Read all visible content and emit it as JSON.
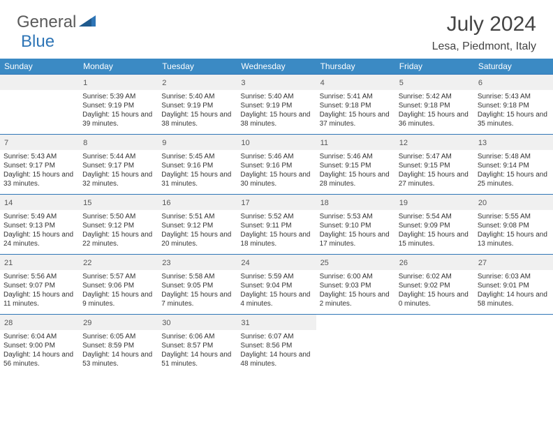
{
  "logo": {
    "text1": "General",
    "text2": "Blue"
  },
  "title": "July 2024",
  "location": "Lesa, Piedmont, Italy",
  "weekdays": [
    "Sunday",
    "Monday",
    "Tuesday",
    "Wednesday",
    "Thursday",
    "Friday",
    "Saturday"
  ],
  "colors": {
    "header_bg": "#3b8ac4",
    "border": "#2e75b6",
    "daynum_bg": "#f0f0f0",
    "text": "#333333",
    "title_text": "#444444",
    "logo_gray": "#5a5a5a",
    "logo_blue": "#2e75b6"
  },
  "typography": {
    "title_fontsize": 30,
    "location_fontsize": 16,
    "weekday_fontsize": 12,
    "daynum_fontsize": 11,
    "cell_fontsize": 10
  },
  "layout": {
    "cols": 7,
    "rows": 5,
    "first_day_col": 1
  },
  "days": [
    {
      "n": 1,
      "sunrise": "5:39 AM",
      "sunset": "9:19 PM",
      "daylight": "15 hours and 39 minutes."
    },
    {
      "n": 2,
      "sunrise": "5:40 AM",
      "sunset": "9:19 PM",
      "daylight": "15 hours and 38 minutes."
    },
    {
      "n": 3,
      "sunrise": "5:40 AM",
      "sunset": "9:19 PM",
      "daylight": "15 hours and 38 minutes."
    },
    {
      "n": 4,
      "sunrise": "5:41 AM",
      "sunset": "9:18 PM",
      "daylight": "15 hours and 37 minutes."
    },
    {
      "n": 5,
      "sunrise": "5:42 AM",
      "sunset": "9:18 PM",
      "daylight": "15 hours and 36 minutes."
    },
    {
      "n": 6,
      "sunrise": "5:43 AM",
      "sunset": "9:18 PM",
      "daylight": "15 hours and 35 minutes."
    },
    {
      "n": 7,
      "sunrise": "5:43 AM",
      "sunset": "9:17 PM",
      "daylight": "15 hours and 33 minutes."
    },
    {
      "n": 8,
      "sunrise": "5:44 AM",
      "sunset": "9:17 PM",
      "daylight": "15 hours and 32 minutes."
    },
    {
      "n": 9,
      "sunrise": "5:45 AM",
      "sunset": "9:16 PM",
      "daylight": "15 hours and 31 minutes."
    },
    {
      "n": 10,
      "sunrise": "5:46 AM",
      "sunset": "9:16 PM",
      "daylight": "15 hours and 30 minutes."
    },
    {
      "n": 11,
      "sunrise": "5:46 AM",
      "sunset": "9:15 PM",
      "daylight": "15 hours and 28 minutes."
    },
    {
      "n": 12,
      "sunrise": "5:47 AM",
      "sunset": "9:15 PM",
      "daylight": "15 hours and 27 minutes."
    },
    {
      "n": 13,
      "sunrise": "5:48 AM",
      "sunset": "9:14 PM",
      "daylight": "15 hours and 25 minutes."
    },
    {
      "n": 14,
      "sunrise": "5:49 AM",
      "sunset": "9:13 PM",
      "daylight": "15 hours and 24 minutes."
    },
    {
      "n": 15,
      "sunrise": "5:50 AM",
      "sunset": "9:12 PM",
      "daylight": "15 hours and 22 minutes."
    },
    {
      "n": 16,
      "sunrise": "5:51 AM",
      "sunset": "9:12 PM",
      "daylight": "15 hours and 20 minutes."
    },
    {
      "n": 17,
      "sunrise": "5:52 AM",
      "sunset": "9:11 PM",
      "daylight": "15 hours and 18 minutes."
    },
    {
      "n": 18,
      "sunrise": "5:53 AM",
      "sunset": "9:10 PM",
      "daylight": "15 hours and 17 minutes."
    },
    {
      "n": 19,
      "sunrise": "5:54 AM",
      "sunset": "9:09 PM",
      "daylight": "15 hours and 15 minutes."
    },
    {
      "n": 20,
      "sunrise": "5:55 AM",
      "sunset": "9:08 PM",
      "daylight": "15 hours and 13 minutes."
    },
    {
      "n": 21,
      "sunrise": "5:56 AM",
      "sunset": "9:07 PM",
      "daylight": "15 hours and 11 minutes."
    },
    {
      "n": 22,
      "sunrise": "5:57 AM",
      "sunset": "9:06 PM",
      "daylight": "15 hours and 9 minutes."
    },
    {
      "n": 23,
      "sunrise": "5:58 AM",
      "sunset": "9:05 PM",
      "daylight": "15 hours and 7 minutes."
    },
    {
      "n": 24,
      "sunrise": "5:59 AM",
      "sunset": "9:04 PM",
      "daylight": "15 hours and 4 minutes."
    },
    {
      "n": 25,
      "sunrise": "6:00 AM",
      "sunset": "9:03 PM",
      "daylight": "15 hours and 2 minutes."
    },
    {
      "n": 26,
      "sunrise": "6:02 AM",
      "sunset": "9:02 PM",
      "daylight": "15 hours and 0 minutes."
    },
    {
      "n": 27,
      "sunrise": "6:03 AM",
      "sunset": "9:01 PM",
      "daylight": "14 hours and 58 minutes."
    },
    {
      "n": 28,
      "sunrise": "6:04 AM",
      "sunset": "9:00 PM",
      "daylight": "14 hours and 56 minutes."
    },
    {
      "n": 29,
      "sunrise": "6:05 AM",
      "sunset": "8:59 PM",
      "daylight": "14 hours and 53 minutes."
    },
    {
      "n": 30,
      "sunrise": "6:06 AM",
      "sunset": "8:57 PM",
      "daylight": "14 hours and 51 minutes."
    },
    {
      "n": 31,
      "sunrise": "6:07 AM",
      "sunset": "8:56 PM",
      "daylight": "14 hours and 48 minutes."
    }
  ],
  "labels": {
    "sunrise_prefix": "Sunrise: ",
    "sunset_prefix": "Sunset: ",
    "daylight_prefix": "Daylight: "
  }
}
